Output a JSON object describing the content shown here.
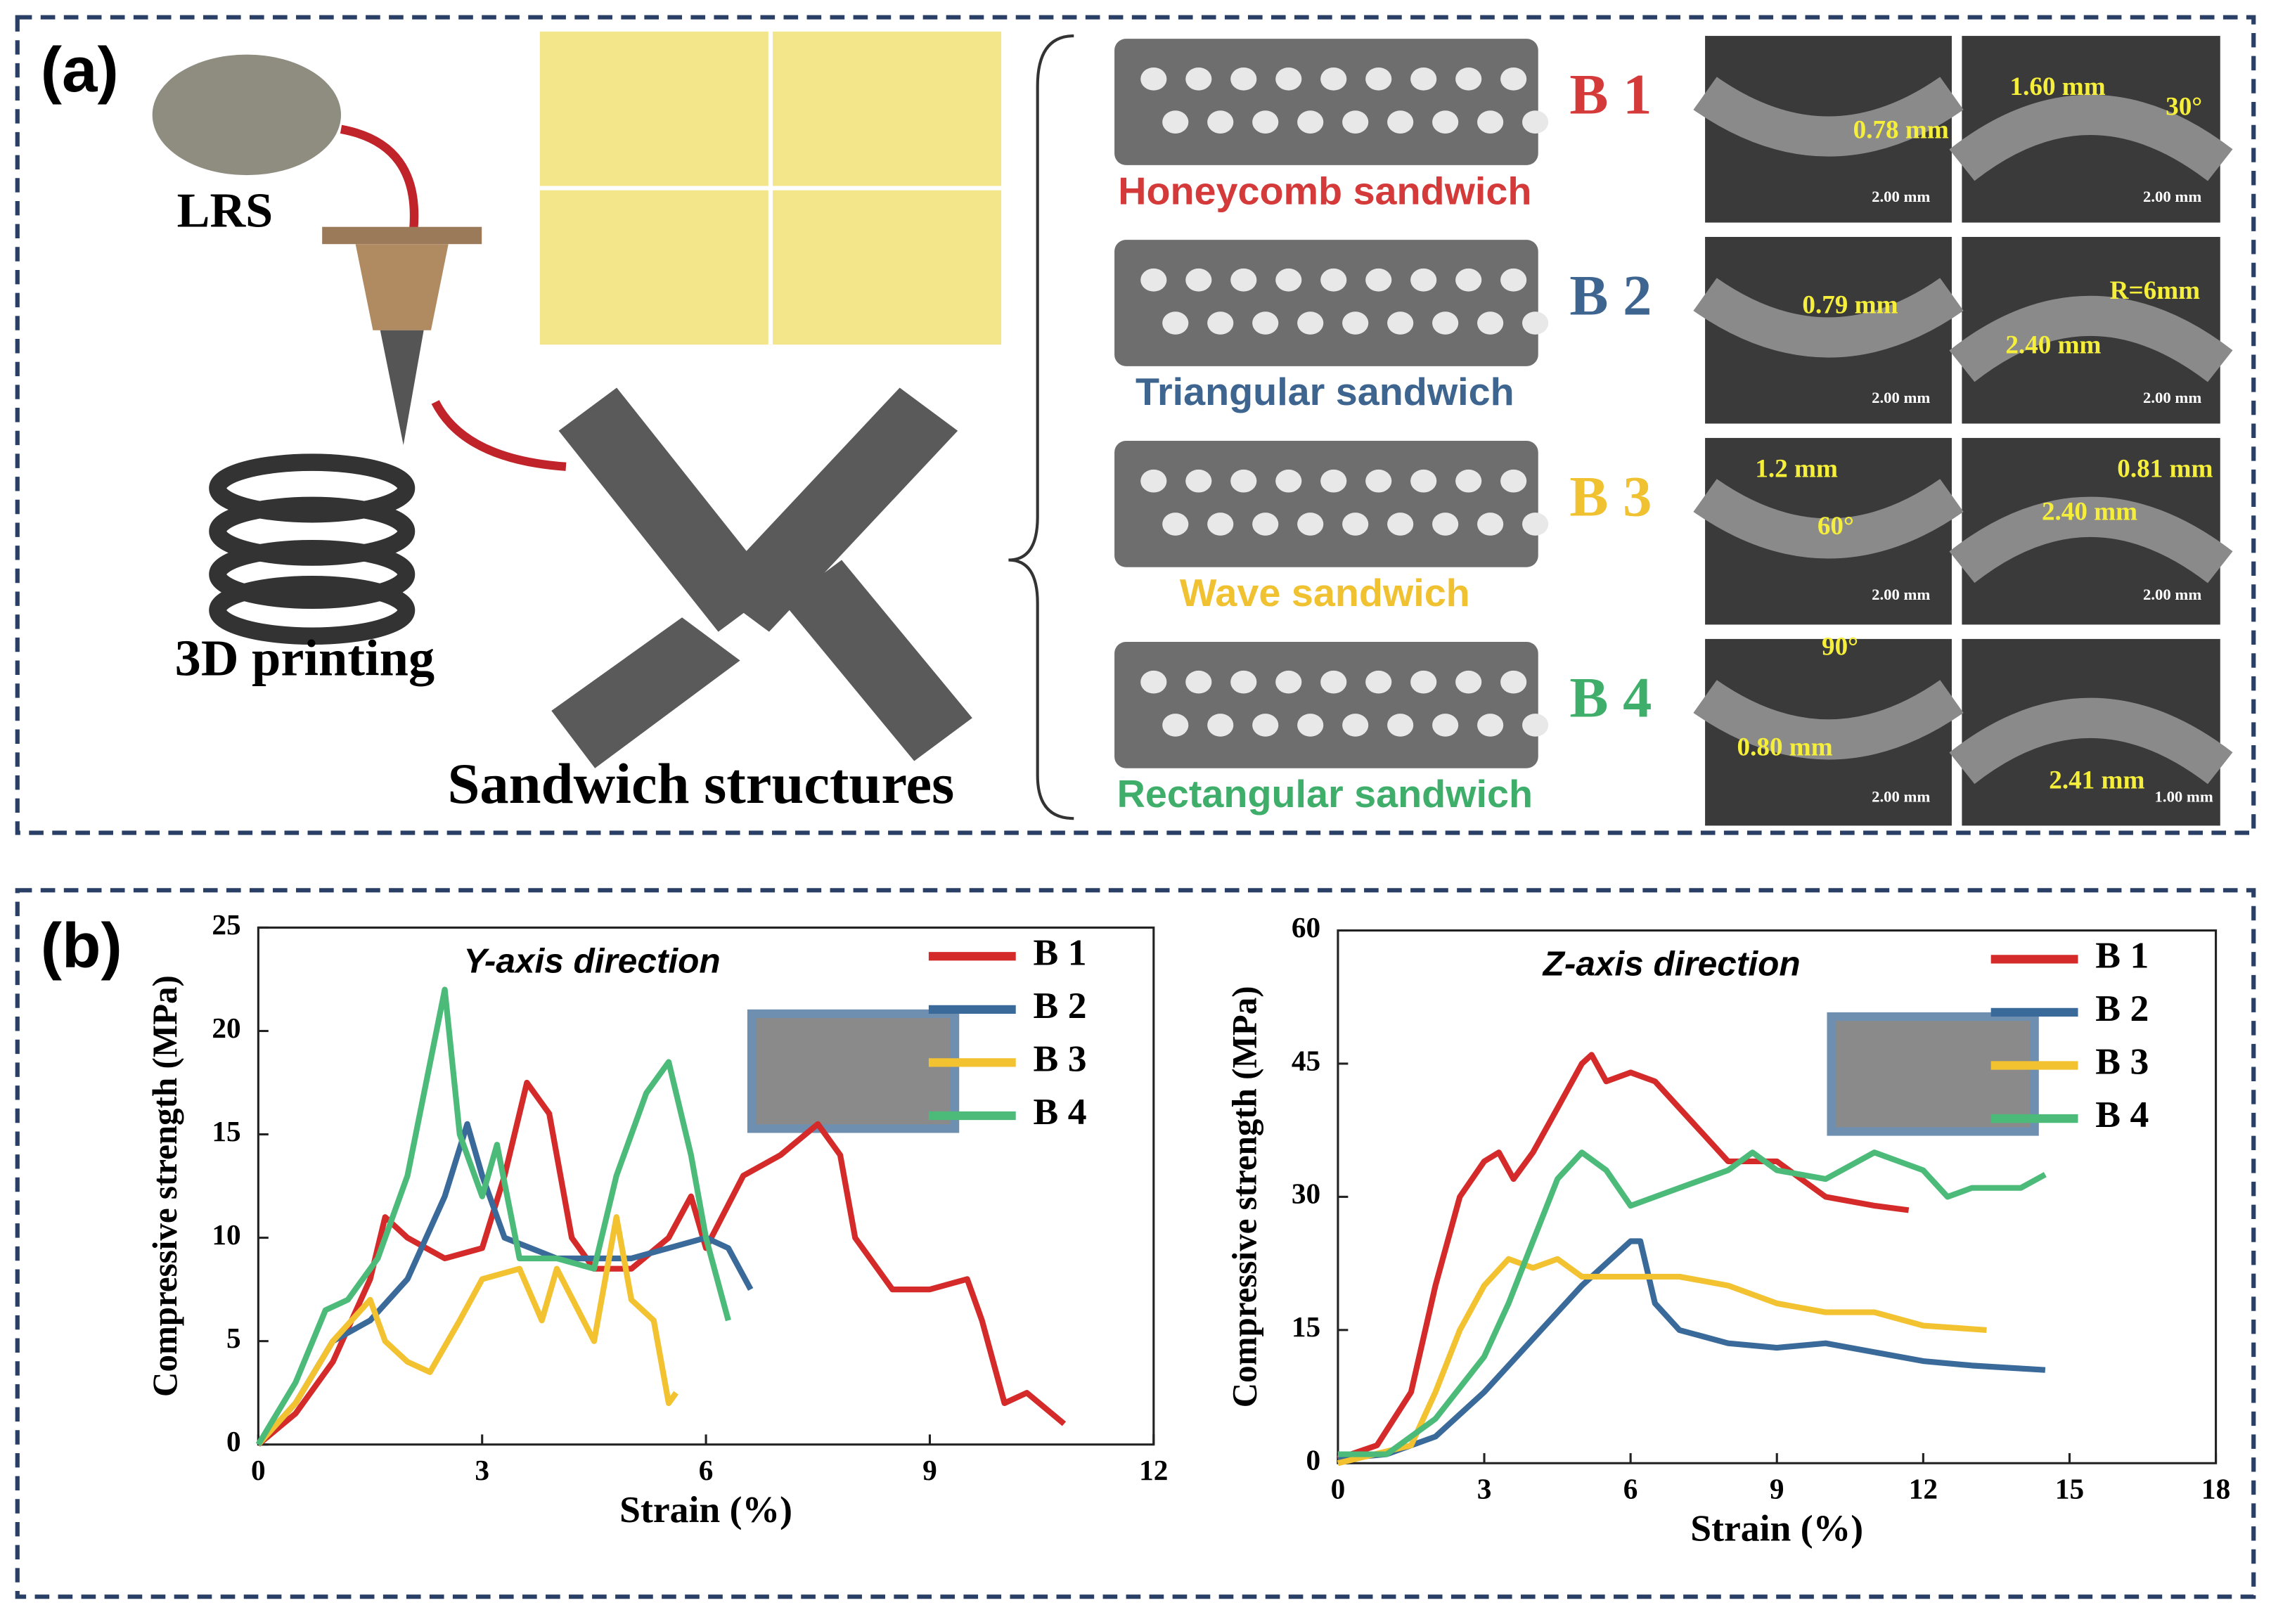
{
  "panel_a": {
    "label": "(a)",
    "labels": [
      "LRS",
      "3D printing",
      "Sandwich structures"
    ],
    "structures": [
      {
        "id": "B 1",
        "name": "Honeycomb sandwich",
        "color": "#d43a3a",
        "annotations": [
          "0.78 mm",
          "2.00 mm",
          "1.60 mm",
          "30°",
          "2.00 mm"
        ]
      },
      {
        "id": "B 2",
        "name": "Triangular sandwich",
        "color": "#3d6590",
        "annotations": [
          "0.79 mm",
          "2.00 mm",
          "R=6mm",
          "2.40 mm",
          "2.00 mm"
        ]
      },
      {
        "id": "B 3",
        "name": "Wave sandwich",
        "color": "#f0c232",
        "annotations": [
          "1.2 mm",
          "60°",
          "2.00 mm",
          "0.81 mm",
          "2.40 mm",
          "2.00 mm"
        ]
      },
      {
        "id": "B 4",
        "name": "Rectangular sandwich",
        "color": "#3fae6a",
        "annotations": [
          "90°",
          "0.80 mm",
          "2.00 mm",
          "2.41 mm",
          "1.00 mm"
        ]
      }
    ]
  },
  "panel_b": {
    "label": "(b)"
  },
  "chart_data": [
    {
      "type": "line",
      "annotation": "Y-axis direction",
      "x_label": "Strain (%)",
      "y_label": "Compressive strength (MPa)",
      "xlim": [
        0,
        12
      ],
      "xticks": [
        0,
        3,
        6,
        9,
        12
      ],
      "ylim": [
        0,
        25
      ],
      "yticks": [
        0,
        5,
        10,
        15,
        20,
        25
      ],
      "legend": "upper right",
      "series": [
        {
          "name": "B 1",
          "color": "#d42a2a",
          "x": [
            0,
            0.5,
            1,
            1.5,
            1.7,
            2,
            2.5,
            3,
            3.3,
            3.6,
            3.9,
            4.2,
            4.5,
            5,
            5.5,
            5.8,
            6,
            6.5,
            7,
            7.5,
            7.8,
            8,
            8.5,
            9,
            9.5,
            9.7,
            10,
            10.3,
            10.8
          ],
          "values": [
            0,
            1.5,
            4,
            8,
            11,
            10,
            9,
            9.5,
            13,
            17.5,
            16,
            10,
            8.5,
            8.5,
            10,
            12,
            9.5,
            13,
            14,
            15.5,
            14,
            10,
            7.5,
            7.5,
            8,
            6,
            2,
            2.5,
            1
          ]
        },
        {
          "name": "B 2",
          "color": "#3a6a9a",
          "x": [
            0,
            0.5,
            1,
            1.5,
            2,
            2.5,
            2.8,
            3,
            3.3,
            4,
            5,
            5.5,
            6,
            6.3,
            6.6
          ],
          "values": [
            0,
            2,
            5,
            6,
            8,
            12,
            15.5,
            13,
            10,
            9,
            9,
            9.5,
            10,
            9.5,
            7.5
          ]
        },
        {
          "name": "B 3",
          "color": "#f2c230",
          "x": [
            0,
            0.5,
            1,
            1.5,
            1.7,
            2,
            2.3,
            2.7,
            3,
            3.5,
            3.8,
            4,
            4.5,
            4.8,
            5,
            5.3,
            5.5,
            5.6
          ],
          "values": [
            0,
            2,
            5,
            7,
            5,
            4,
            3.5,
            6,
            8,
            8.5,
            6,
            8.5,
            5,
            11,
            7,
            6,
            2,
            2.5
          ]
        },
        {
          "name": "B 4",
          "color": "#4cbb7a",
          "x": [
            0,
            0.5,
            0.9,
            1.2,
            1.6,
            2,
            2.5,
            2.7,
            3,
            3.2,
            3.5,
            4,
            4.5,
            4.8,
            5.2,
            5.5,
            5.8,
            6,
            6.3
          ],
          "values": [
            0,
            3,
            6.5,
            7,
            9,
            13,
            22,
            15,
            12,
            14.5,
            9,
            9,
            8.5,
            13,
            17,
            18.5,
            14,
            10,
            6
          ]
        }
      ]
    },
    {
      "type": "line",
      "annotation": "Z-axis direction",
      "x_label": "Strain (%)",
      "y_label": "Compressive strength (MPa)",
      "xlim": [
        0,
        18
      ],
      "xticks": [
        0,
        3,
        6,
        9,
        12,
        15,
        18
      ],
      "ylim": [
        0,
        60
      ],
      "yticks": [
        0,
        15,
        30,
        45,
        60
      ],
      "legend": "upper right",
      "series": [
        {
          "name": "B 1",
          "color": "#d42a2a",
          "x": [
            0,
            0.8,
            1.5,
            2,
            2.5,
            3,
            3.3,
            3.6,
            4,
            4.5,
            5,
            5.2,
            5.5,
            6,
            6.5,
            7,
            7.5,
            8,
            9,
            10,
            11,
            11.7
          ],
          "values": [
            0.5,
            2,
            8,
            20,
            30,
            34,
            35,
            32,
            35,
            40,
            45,
            46,
            43,
            44,
            43,
            40,
            37,
            34,
            34,
            30,
            29,
            28.5
          ]
        },
        {
          "name": "B 2",
          "color": "#3a6a9a",
          "x": [
            0,
            1,
            2,
            3,
            4,
            5,
            6,
            6.2,
            6.5,
            7,
            8,
            9,
            10,
            11,
            12,
            13,
            14.5
          ],
          "values": [
            0.5,
            1,
            3,
            8,
            14,
            20,
            25,
            25,
            18,
            15,
            13.5,
            13,
            13.5,
            12.5,
            11.5,
            11,
            10.5
          ]
        },
        {
          "name": "B 3",
          "color": "#f2c230",
          "x": [
            0,
            1.5,
            2,
            2.5,
            3,
            3.5,
            4,
            4.5,
            5,
            6,
            7,
            8,
            9,
            10,
            11,
            12,
            13.3
          ],
          "values": [
            0,
            2,
            8,
            15,
            20,
            23,
            22,
            23,
            21,
            21,
            21,
            20,
            18,
            17,
            17,
            15.5,
            15
          ]
        },
        {
          "name": "B 4",
          "color": "#4cbb7a",
          "x": [
            0,
            1,
            2,
            3,
            3.5,
            4,
            4.5,
            5,
            5.5,
            6,
            7,
            8,
            8.5,
            9,
            10,
            11,
            12,
            12.5,
            13,
            14,
            14.5
          ],
          "values": [
            1,
            1,
            5,
            12,
            18,
            25,
            32,
            35,
            33,
            29,
            31,
            33,
            35,
            33,
            32,
            35,
            33,
            30,
            31,
            31,
            32.5
          ]
        }
      ]
    }
  ]
}
